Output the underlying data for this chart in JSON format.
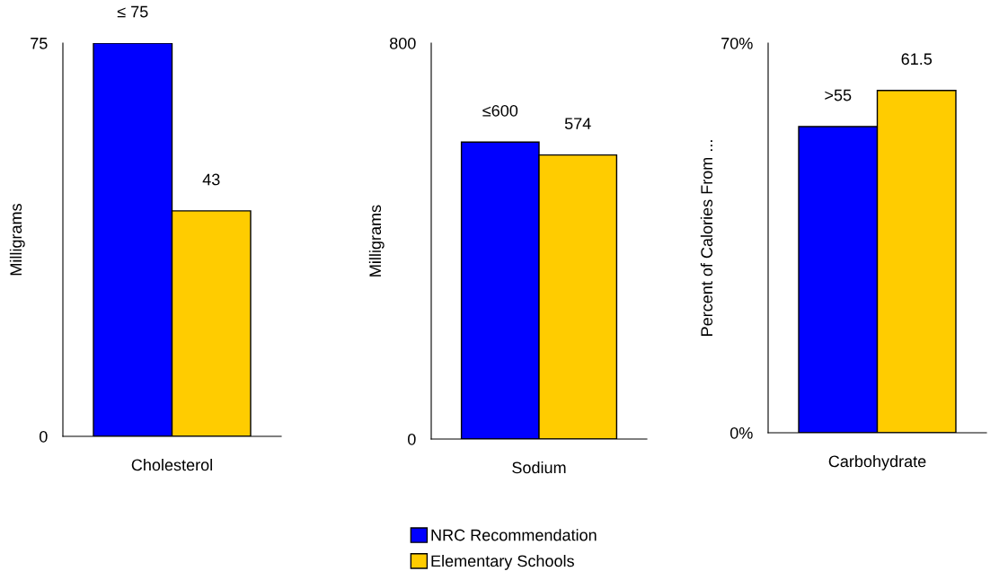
{
  "chart_data": [
    {
      "type": "bar",
      "categories": [
        "Cholesterol"
      ],
      "ylabel": "Milligrams",
      "ylim": [
        0,
        75
      ],
      "yticks": [
        0,
        75
      ],
      "legend": "bottom",
      "series": [
        {
          "name": "NRC Recommendation",
          "color": "#0000ff",
          "values": [
            75
          ],
          "value_labels": [
            "≤ 75"
          ]
        },
        {
          "name": "Elementary Schools",
          "color": "#ffcc00",
          "values": [
            43
          ],
          "value_labels": [
            "43"
          ]
        }
      ]
    },
    {
      "type": "bar",
      "categories": [
        "Sodium"
      ],
      "ylabel": "Milligrams",
      "ylim": [
        0,
        800
      ],
      "yticks": [
        0,
        800
      ],
      "series": [
        {
          "color": "#0000ff",
          "values": [
            600
          ],
          "value_labels": [
            "≤600"
          ]
        },
        {
          "color": "#ffcc00",
          "values": [
            574
          ],
          "value_labels": [
            "574"
          ]
        }
      ]
    },
    {
      "type": "bar",
      "categories": [
        "Carbohydrate"
      ],
      "ylabel": "Percent of Calories From ...",
      "ylim": [
        0,
        70
      ],
      "yticks": [
        {
          "value": 0,
          "label": "0%"
        },
        {
          "value": 70,
          "label": "70%"
        }
      ],
      "series": [
        {
          "color": "#0000ff",
          "values": [
            55
          ],
          "value_labels": [
            ">55"
          ]
        },
        {
          "color": "#ffcc00",
          "values": [
            61.5
          ],
          "value_labels": [
            "61.5"
          ]
        }
      ]
    }
  ]
}
